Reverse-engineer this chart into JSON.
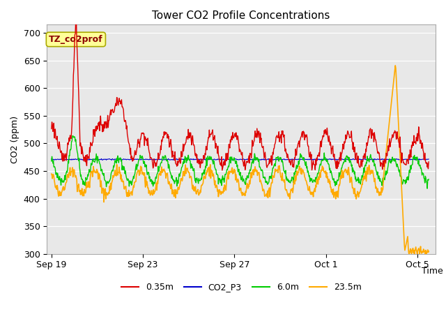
{
  "title": "Tower CO2 Profile Concentrations",
  "xlabel": "Time",
  "ylabel": "CO2 (ppm)",
  "ylim": [
    300,
    715
  ],
  "yticks": [
    300,
    350,
    400,
    450,
    500,
    550,
    600,
    650,
    700
  ],
  "annotation_text": "TZ_co2prof",
  "annotation_text_color": "#8B0000",
  "bg_color": "#e8e8e8",
  "fig_color": "#ffffff",
  "series": {
    "0.35m": {
      "color": "#dd0000",
      "lw": 1.0
    },
    "CO2_P3": {
      "color": "#0000cc",
      "lw": 0.8
    },
    "6.0m": {
      "color": "#00cc00",
      "lw": 1.0
    },
    "23.5m": {
      "color": "#ffaa00",
      "lw": 1.2
    }
  },
  "xtick_labels": [
    "Sep 19",
    "Sep 23",
    "Sep 27",
    "Oct 1",
    "Oct 5"
  ],
  "xtick_days": [
    0,
    4,
    8,
    12,
    16
  ]
}
